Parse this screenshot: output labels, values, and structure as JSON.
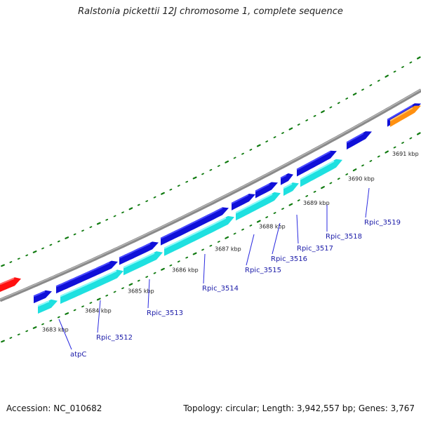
{
  "title": "Ralstonia pickettii 12J chromosome 1, complete sequence",
  "footer": {
    "accession": "Accession: NC_010682",
    "summary": "Topology: circular; Length: 3,942,557 bp; Genes: 3,767"
  },
  "colors": {
    "backbone": "#8a8a8a",
    "forward_cds": "#1010d8",
    "forward_cds_top": "#4a4aff",
    "reverse_cds": "#1ee0e0",
    "reverse_cds_top": "#8ffcfc",
    "other_forward": "#ff1010",
    "other_reverse": "#ff9010",
    "tick": "#0f7a0f",
    "label_line": "#2a2ae0"
  },
  "ruler": [
    {
      "label": "3683 kbp"
    },
    {
      "label": "3684 kbp"
    },
    {
      "label": "3685 kbp"
    },
    {
      "label": "3686 kbp"
    },
    {
      "label": "3687 kbp"
    },
    {
      "label": "3688 kbp"
    },
    {
      "label": "3689 kbp"
    },
    {
      "label": "3690 kbp"
    },
    {
      "label": "3691 kbp"
    }
  ],
  "genes": [
    {
      "label": "atpC"
    },
    {
      "label": "Rpic_3512"
    },
    {
      "label": "Rpic_3513"
    },
    {
      "label": "Rpic_3514"
    },
    {
      "label": "Rpic_3515"
    },
    {
      "label": "Rpic_3516"
    },
    {
      "label": "Rpic_3517"
    },
    {
      "label": "Rpic_3518"
    },
    {
      "label": "Rpic_3519"
    }
  ]
}
